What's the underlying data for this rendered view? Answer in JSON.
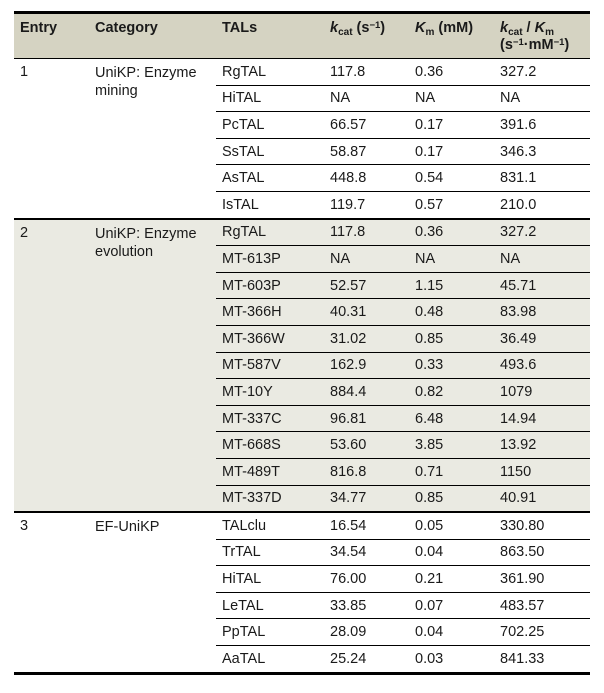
{
  "colors": {
    "page_bg": "#ffffff",
    "header_bg": "#d5d3c2",
    "shaded_section_bg": "#eaeae2",
    "line": "#000000",
    "text": "#1a1a1a"
  },
  "table": {
    "headers": {
      "entry": "Entry",
      "category": "Category",
      "tals": "TALs",
      "kcat": {
        "sym": "k",
        "sub": "cat",
        "unit_pre": " (s",
        "unit_sup": "−1",
        "unit_post": ")"
      },
      "km": {
        "sym": "K",
        "sub": "m",
        "unit": " (mM)"
      },
      "ratio": {
        "sym1": "k",
        "sub1": "cat",
        "slash": " / ",
        "sym2": "K",
        "sub2": "m",
        "unit_p1": "(s",
        "unit_s1": "−1",
        "unit_p2": "·mM",
        "unit_s2": "−1",
        "unit_p3": ")"
      }
    },
    "sections": [
      {
        "entry": "1",
        "category": "UniKP: Enzyme mining",
        "shaded": false,
        "rows": [
          {
            "tal": "RgTAL",
            "kcat": "117.8",
            "km": "0.36",
            "ratio": "327.2"
          },
          {
            "tal": "HiTAL",
            "kcat": "NA",
            "km": "NA",
            "ratio": "NA"
          },
          {
            "tal": "PcTAL",
            "kcat": "66.57",
            "km": "0.17",
            "ratio": "391.6"
          },
          {
            "tal": "SsTAL",
            "kcat": "58.87",
            "km": "0.17",
            "ratio": "346.3"
          },
          {
            "tal": "AsTAL",
            "kcat": "448.8",
            "km": "0.54",
            "ratio": "831.1"
          },
          {
            "tal": "IsTAL",
            "kcat": "119.7",
            "km": "0.57",
            "ratio": "210.0"
          }
        ]
      },
      {
        "entry": "2",
        "category": "UniKP: Enzyme evolution",
        "shaded": true,
        "rows": [
          {
            "tal": "RgTAL",
            "kcat": "117.8",
            "km": "0.36",
            "ratio": "327.2"
          },
          {
            "tal": "MT-613P",
            "kcat": "NA",
            "km": "NA",
            "ratio": "NA"
          },
          {
            "tal": "MT-603P",
            "kcat": "52.57",
            "km": "1.15",
            "ratio": "45.71"
          },
          {
            "tal": "MT-366H",
            "kcat": "40.31",
            "km": "0.48",
            "ratio": "83.98"
          },
          {
            "tal": "MT-366W",
            "kcat": "31.02",
            "km": "0.85",
            "ratio": "36.49"
          },
          {
            "tal": "MT-587V",
            "kcat": "162.9",
            "km": "0.33",
            "ratio": "493.6"
          },
          {
            "tal": "MT-10Y",
            "kcat": "884.4",
            "km": "0.82",
            "ratio": "1079"
          },
          {
            "tal": "MT-337C",
            "kcat": "96.81",
            "km": "6.48",
            "ratio": "14.94"
          },
          {
            "tal": "MT-668S",
            "kcat": "53.60",
            "km": "3.85",
            "ratio": "13.92"
          },
          {
            "tal": "MT-489T",
            "kcat": "816.8",
            "km": "0.71",
            "ratio": "1150"
          },
          {
            "tal": "MT-337D",
            "kcat": "34.77",
            "km": "0.85",
            "ratio": "40.91"
          }
        ]
      },
      {
        "entry": "3",
        "category": "EF-UniKP",
        "shaded": false,
        "rows": [
          {
            "tal": "TALclu",
            "kcat": "16.54",
            "km": "0.05",
            "ratio": "330.80"
          },
          {
            "tal": "TrTAL",
            "kcat": "34.54",
            "km": "0.04",
            "ratio": "863.50"
          },
          {
            "tal": "HiTAL",
            "kcat": "76.00",
            "km": "0.21",
            "ratio": "361.90"
          },
          {
            "tal": "LeTAL",
            "kcat": "33.85",
            "km": "0.07",
            "ratio": "483.57"
          },
          {
            "tal": "PpTAL",
            "kcat": "28.09",
            "km": "0.04",
            "ratio": "702.25"
          },
          {
            "tal": "AaTAL",
            "kcat": "25.24",
            "km": "0.03",
            "ratio": "841.33"
          }
        ]
      }
    ]
  }
}
